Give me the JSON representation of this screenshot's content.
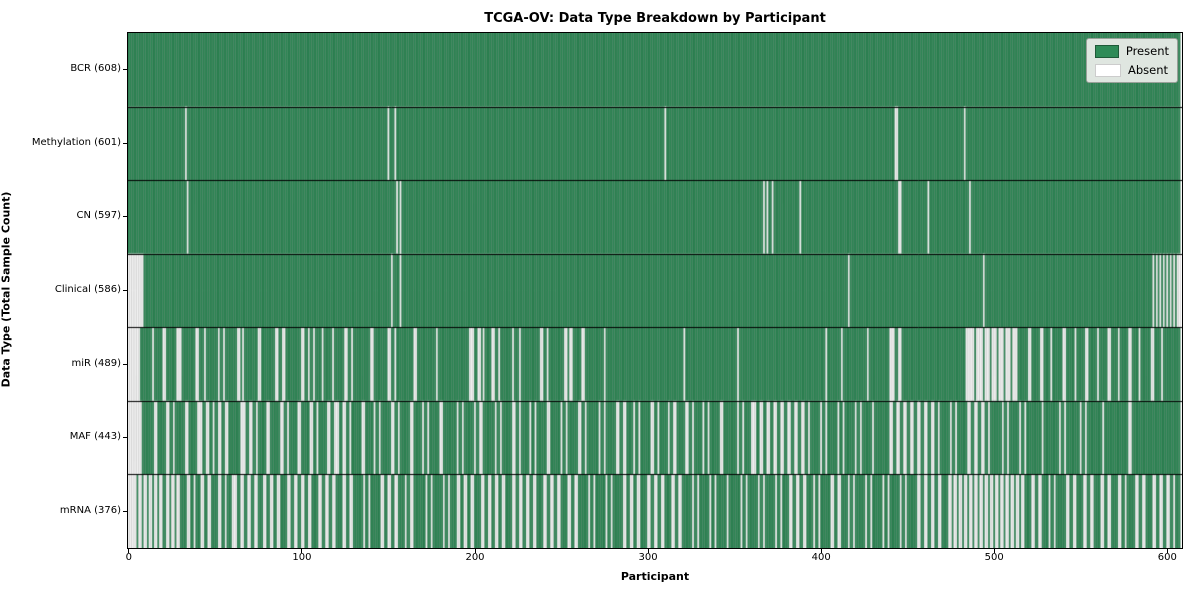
{
  "colors": {
    "present": "#2e8b57",
    "absent": "#ffffff",
    "bar_edge": "rgba(0,0,0,0.36)",
    "separator": "#000000",
    "legend_bg": "#dfe6e0"
  },
  "legend": {
    "present_label": "Present",
    "absent_label": "Absent"
  },
  "chart_data": {
    "type": "heatmap",
    "title": "TCGA-OV: Data Type Breakdown by Participant",
    "xlabel": "Participant",
    "ylabel": "Data Type (Total Sample Count)",
    "legend": [
      "Present",
      "Absent"
    ],
    "legend_position": "upper right",
    "grid": false,
    "n_participants": 608,
    "xlim": [
      -0.5,
      608.5
    ],
    "x_ticks": [
      0,
      100,
      200,
      300,
      400,
      500,
      600
    ],
    "cell_values": {
      "present": 1,
      "absent": 0
    },
    "rows": [
      {
        "label": "BCR (608)",
        "name": "BCR",
        "present_count": 608,
        "absent": []
      },
      {
        "label": "Methylation (601)",
        "name": "Methylation",
        "present_count": 601,
        "absent": [
          33,
          150,
          154,
          310,
          443,
          444,
          483
        ]
      },
      {
        "label": "CN (597)",
        "name": "CN",
        "present_count": 597,
        "absent": [
          34,
          155,
          157,
          367,
          369,
          372,
          388,
          445,
          446,
          462,
          486
        ]
      },
      {
        "label": "Clinical (586)",
        "name": "Clinical",
        "present_count": 586,
        "absent": [
          0,
          1,
          2,
          3,
          4,
          5,
          6,
          7,
          8,
          152,
          157,
          416,
          494,
          592,
          594,
          596,
          598,
          600,
          602,
          604,
          606,
          607
        ]
      },
      {
        "label": "miR (489)",
        "name": "miR",
        "present_count": 489,
        "absent": [
          0,
          1,
          2,
          3,
          4,
          5,
          6,
          14,
          20,
          21,
          28,
          29,
          30,
          39,
          40,
          44,
          52,
          55,
          63,
          64,
          66,
          75,
          76,
          85,
          86,
          89,
          90,
          100,
          101,
          104,
          107,
          112,
          118,
          125,
          126,
          129,
          140,
          141,
          150,
          151,
          154,
          165,
          166,
          178,
          197,
          198,
          199,
          202,
          203,
          205,
          210,
          211,
          214,
          222,
          226,
          238,
          239,
          242,
          252,
          253,
          255,
          256,
          262,
          263,
          275,
          321,
          352,
          403,
          412,
          427,
          440,
          441,
          442,
          445,
          446,
          484,
          485,
          486,
          487,
          488,
          490,
          491,
          492,
          493,
          495,
          496,
          497,
          499,
          500,
          501,
          503,
          504,
          505,
          507,
          508,
          509,
          511,
          512,
          513,
          520,
          521,
          527,
          528,
          533,
          540,
          541,
          547,
          553,
          554,
          560,
          566,
          567,
          572,
          578,
          579,
          584,
          591,
          592,
          597
        ]
      },
      {
        "label": "MAF (443)",
        "name": "MAF",
        "present_count": 443,
        "absent": [
          0,
          1,
          2,
          3,
          4,
          5,
          6,
          7,
          15,
          16,
          22,
          23,
          26,
          33,
          34,
          40,
          41,
          42,
          45,
          46,
          49,
          52,
          53,
          56,
          57,
          65,
          66,
          67,
          70,
          71,
          74,
          80,
          81,
          88,
          89,
          92,
          98,
          99,
          105,
          106,
          109,
          115,
          116,
          119,
          120,
          121,
          124,
          125,
          128,
          135,
          136,
          142,
          145,
          152,
          153,
          156,
          163,
          164,
          170,
          173,
          180,
          181,
          190,
          193,
          200,
          203,
          204,
          212,
          215,
          222,
          223,
          226,
          232,
          235,
          242,
          243,
          250,
          253,
          260,
          261,
          264,
          272,
          275,
          282,
          283,
          286,
          287,
          292,
          295,
          302,
          303,
          306,
          312,
          315,
          316,
          322,
          323,
          326,
          332,
          335,
          342,
          343,
          352,
          355,
          360,
          361,
          362,
          365,
          366,
          369,
          370,
          373,
          374,
          377,
          378,
          381,
          382,
          385,
          386,
          389,
          390,
          393,
          400,
          403,
          410,
          413,
          420,
          423,
          430,
          440,
          441,
          444,
          445,
          448,
          449,
          452,
          453,
          456,
          457,
          460,
          461,
          464,
          465,
          468,
          475,
          478,
          485,
          486,
          489,
          490,
          493,
          494,
          497,
          505,
          508,
          515,
          518,
          528,
          538,
          541,
          550,
          553,
          563,
          578,
          579
        ]
      },
      {
        "label": "mRNA (376)",
        "name": "mRNA",
        "present_count": 376,
        "absent": [
          0,
          1,
          2,
          3,
          4,
          6,
          7,
          9,
          10,
          12,
          13,
          15,
          16,
          18,
          19,
          22,
          23,
          25,
          26,
          28,
          29,
          34,
          35,
          38,
          42,
          43,
          46,
          47,
          52,
          53,
          56,
          60,
          61,
          62,
          65,
          66,
          69,
          70,
          73,
          74,
          78,
          79,
          82,
          83,
          86,
          87,
          92,
          93,
          96,
          97,
          100,
          101,
          104,
          105,
          110,
          111,
          114,
          115,
          118,
          119,
          124,
          125,
          128,
          129,
          136,
          139,
          146,
          147,
          150,
          151,
          154,
          155,
          160,
          163,
          164,
          172,
          175,
          182,
          185,
          190,
          191,
          194,
          195,
          198,
          199,
          204,
          205,
          208,
          209,
          212,
          213,
          216,
          217,
          222,
          223,
          226,
          227,
          230,
          231,
          234,
          235,
          240,
          241,
          244,
          245,
          248,
          249,
          254,
          255,
          258,
          259,
          266,
          269,
          276,
          279,
          286,
          287,
          290,
          291,
          294,
          295,
          300,
          301,
          304,
          305,
          308,
          309,
          314,
          315,
          318,
          319,
          326,
          329,
          336,
          339,
          346,
          354,
          357,
          364,
          367,
          374,
          377,
          382,
          383,
          386,
          387,
          390,
          391,
          396,
          399,
          406,
          407,
          410,
          411,
          416,
          419,
          426,
          429,
          436,
          439,
          446,
          449,
          456,
          457,
          460,
          461,
          464,
          465,
          468,
          469,
          474,
          475,
          477,
          478,
          480,
          481,
          483,
          484,
          486,
          487,
          489,
          490,
          492,
          493,
          495,
          496,
          498,
          499,
          501,
          502,
          504,
          505,
          507,
          508,
          510,
          511,
          513,
          514,
          516,
          517,
          522,
          523,
          526,
          527,
          532,
          535,
          542,
          543,
          546,
          547,
          552,
          553,
          556,
          557,
          562,
          563,
          566,
          567,
          572,
          573,
          576,
          582,
          583,
          586,
          587,
          592,
          593,
          596,
          597,
          600,
          601,
          604
        ]
      }
    ]
  }
}
